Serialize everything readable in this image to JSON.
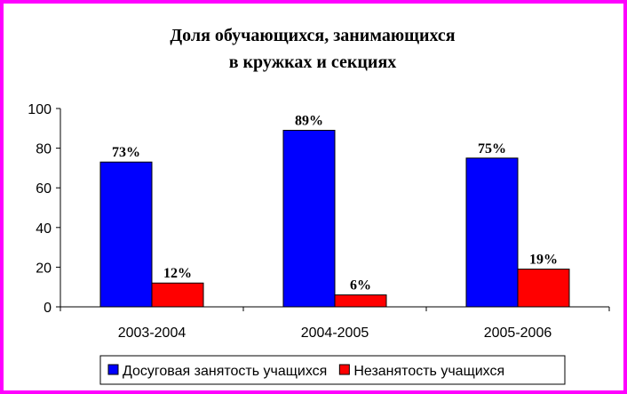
{
  "chart_data": {
    "type": "bar",
    "title_lines": [
      "Доля обучающихся, занимающихся",
      "в кружках  и секциях"
    ],
    "categories": [
      "2003-2004",
      "2004-2005",
      "2005-2006"
    ],
    "series": [
      {
        "name": "Досуговая занятость учащихся",
        "color": "#0000ff",
        "values": [
          73,
          89,
          75
        ],
        "labels": [
          "73%",
          "89%",
          "75%"
        ]
      },
      {
        "name": "Незанятость учащихся",
        "color": "#ff0000",
        "values": [
          12,
          6,
          19
        ],
        "labels": [
          "12%",
          "6%",
          "19%"
        ]
      }
    ],
    "ylim": [
      0,
      100
    ],
    "yticks": [
      0,
      20,
      40,
      60,
      80,
      100
    ],
    "grid": false,
    "legend_position": "bottom"
  }
}
